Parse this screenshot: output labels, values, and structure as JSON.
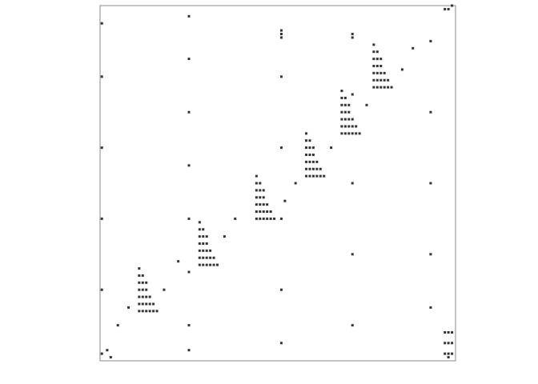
{
  "chart_data": {
    "type": "scatter",
    "color": "#333333",
    "frame_color": "#888888",
    "xlim": [
      0,
      100
    ],
    "ylim": [
      100,
      0
    ],
    "x": [
      11,
      11,
      12,
      11,
      12,
      13,
      11,
      12,
      13,
      11,
      12,
      13,
      14,
      11,
      12,
      13,
      14,
      15,
      11,
      12,
      13,
      14,
      15,
      16,
      28,
      28,
      29,
      28,
      29,
      30,
      28,
      29,
      30,
      28,
      29,
      30,
      31,
      28,
      29,
      30,
      31,
      32,
      28,
      29,
      30,
      31,
      32,
      33,
      44,
      44,
      45,
      44,
      45,
      46,
      44,
      45,
      46,
      44,
      45,
      46,
      47,
      44,
      45,
      46,
      47,
      48,
      44,
      45,
      46,
      47,
      48,
      49,
      58,
      58,
      59,
      58,
      59,
      60,
      58,
      59,
      60,
      58,
      59,
      60,
      61,
      58,
      59,
      60,
      61,
      62,
      58,
      59,
      60,
      61,
      62,
      63,
      68,
      68,
      69,
      68,
      69,
      70,
      68,
      69,
      70,
      68,
      69,
      70,
      71,
      68,
      69,
      70,
      71,
      72,
      68,
      69,
      70,
      71,
      72,
      73,
      77,
      77,
      78,
      77,
      78,
      79,
      77,
      78,
      79,
      77,
      78,
      79,
      80,
      77,
      78,
      79,
      80,
      81,
      77,
      78,
      79,
      80,
      81,
      82,
      25,
      25,
      25,
      25,
      25,
      25,
      25,
      25,
      51,
      51,
      51,
      51,
      51,
      51,
      51,
      51,
      71,
      71,
      71,
      71,
      71,
      71,
      0.5,
      0.5,
      0.5,
      0.5,
      0.5,
      0.5,
      93,
      93,
      93,
      93,
      93,
      5,
      8,
      18,
      22,
      35,
      38,
      52,
      55,
      65,
      75,
      85,
      88,
      2,
      3,
      97,
      98,
      99,
      97,
      98,
      99,
      97,
      98,
      99,
      98,
      97,
      98,
      99
    ],
    "values": [
      74,
      76,
      76,
      78,
      78,
      78,
      80,
      80,
      80,
      82,
      82,
      82,
      82,
      84,
      84,
      84,
      84,
      84,
      86,
      86,
      86,
      86,
      86,
      86,
      61,
      63,
      63,
      65,
      65,
      65,
      67,
      67,
      67,
      69,
      69,
      69,
      69,
      71,
      71,
      71,
      71,
      71,
      73,
      73,
      73,
      73,
      73,
      73,
      48,
      50,
      50,
      52,
      52,
      52,
      54,
      54,
      54,
      56,
      56,
      56,
      56,
      58,
      58,
      58,
      58,
      58,
      60,
      60,
      60,
      60,
      60,
      60,
      36,
      38,
      38,
      40,
      40,
      40,
      42,
      42,
      42,
      44,
      44,
      44,
      44,
      46,
      46,
      46,
      46,
      46,
      48,
      48,
      48,
      48,
      48,
      48,
      24,
      26,
      26,
      28,
      28,
      28,
      30,
      30,
      30,
      32,
      32,
      32,
      32,
      34,
      34,
      34,
      34,
      34,
      36,
      36,
      36,
      36,
      36,
      36,
      11,
      13,
      13,
      15,
      15,
      15,
      17,
      17,
      17,
      19,
      19,
      19,
      19,
      21,
      21,
      21,
      21,
      21,
      23,
      23,
      23,
      23,
      23,
      23,
      3,
      15,
      30,
      45,
      60,
      75,
      90,
      97,
      7,
      8,
      9,
      20,
      40,
      60,
      80,
      95,
      8,
      9,
      25,
      50,
      70,
      90,
      5,
      20,
      40,
      60,
      80,
      98,
      10,
      30,
      50,
      70,
      85,
      90,
      85,
      80,
      72,
      65,
      60,
      55,
      50,
      40,
      28,
      18,
      12,
      97,
      99,
      92,
      92,
      92,
      95,
      95,
      95,
      98,
      98,
      98,
      99,
      1,
      1,
      0
    ]
  }
}
